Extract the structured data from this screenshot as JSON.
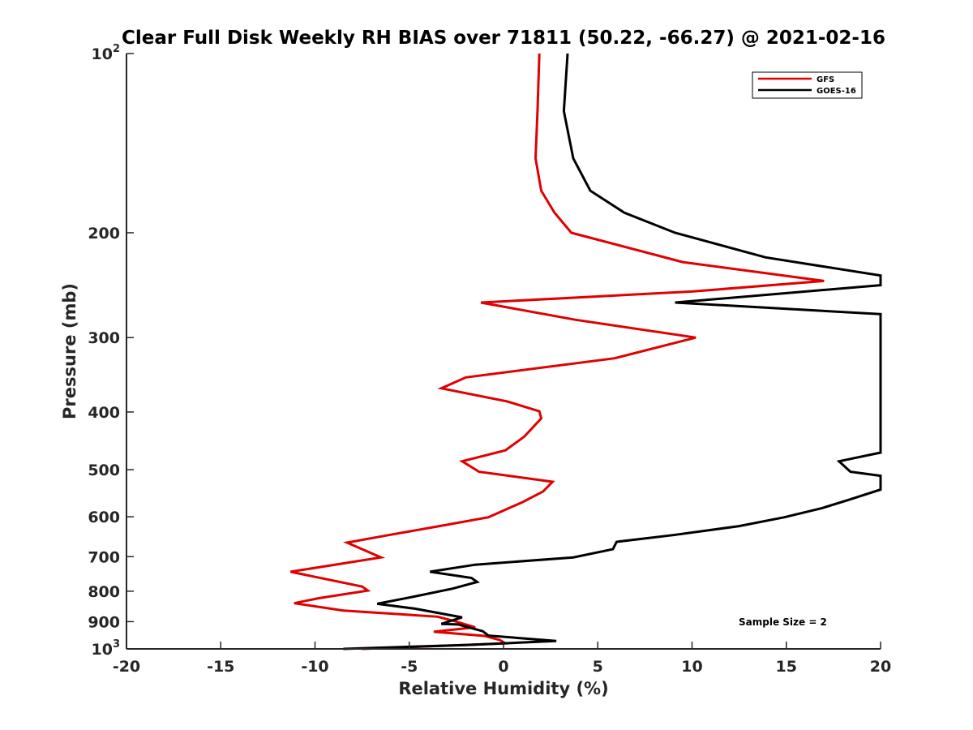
{
  "chart_data": {
    "type": "line",
    "title": "Clear Full Disk Weekly RH BIAS over 71811 (50.22, -66.27) @ 2021-02-16",
    "xlabel": "Relative Humidity (%)",
    "ylabel": "Pressure (mb)",
    "xlim": [
      -20,
      20
    ],
    "ylim": [
      100,
      1000
    ],
    "yscale": "log",
    "yreversed": true,
    "grid": false,
    "legend_position": "top-right",
    "annotation": "Sample Size = 2",
    "x_ticks": [
      {
        "value": -20,
        "label": "-20"
      },
      {
        "value": -15,
        "label": "-15"
      },
      {
        "value": -10,
        "label": "-10"
      },
      {
        "value": -5,
        "label": "-5"
      },
      {
        "value": 0,
        "label": "0"
      },
      {
        "value": 5,
        "label": "5"
      },
      {
        "value": 10,
        "label": "10"
      },
      {
        "value": 15,
        "label": "15"
      },
      {
        "value": 20,
        "label": "20"
      }
    ],
    "y_ticks": [
      {
        "value": 100,
        "base": "10",
        "exp": "2"
      },
      {
        "value": 200,
        "base": "200",
        "exp": ""
      },
      {
        "value": 300,
        "base": "300",
        "exp": ""
      },
      {
        "value": 400,
        "base": "400",
        "exp": ""
      },
      {
        "value": 500,
        "base": "500",
        "exp": ""
      },
      {
        "value": 600,
        "base": "600",
        "exp": ""
      },
      {
        "value": 700,
        "base": "700",
        "exp": ""
      },
      {
        "value": 800,
        "base": "800",
        "exp": ""
      },
      {
        "value": 900,
        "base": "900",
        "exp": ""
      },
      {
        "value": 1000,
        "base": "10",
        "exp": "3"
      }
    ],
    "series": [
      {
        "name": "GFS",
        "color": "#e00000",
        "points": [
          [
            1.9,
            100
          ],
          [
            1.8,
            125
          ],
          [
            1.7,
            150
          ],
          [
            2.0,
            170
          ],
          [
            2.7,
            185
          ],
          [
            3.6,
            200
          ],
          [
            9.5,
            224
          ],
          [
            17.0,
            241
          ],
          [
            10.0,
            251
          ],
          [
            -1.2,
            262
          ],
          [
            3.8,
            280
          ],
          [
            10.2,
            300
          ],
          [
            5.9,
            325
          ],
          [
            -2.0,
            350
          ],
          [
            -3.3,
            365
          ],
          [
            0.2,
            384
          ],
          [
            1.9,
            399
          ],
          [
            2.0,
            410
          ],
          [
            1.1,
            440
          ],
          [
            0.1,
            464
          ],
          [
            -2.2,
            484
          ],
          [
            -1.3,
            504
          ],
          [
            2.6,
            524
          ],
          [
            2.1,
            544
          ],
          [
            1.0,
            567
          ],
          [
            -0.8,
            601
          ],
          [
            -3.4,
            622
          ],
          [
            -6.1,
            644
          ],
          [
            -8.3,
            663
          ],
          [
            -6.5,
            702
          ],
          [
            -11.3,
            742
          ],
          [
            -7.5,
            786
          ],
          [
            -7.2,
            798
          ],
          [
            -9.8,
            822
          ],
          [
            -11.1,
            838
          ],
          [
            -8.5,
            862
          ],
          [
            -3.5,
            883
          ],
          [
            -2.5,
            900
          ],
          [
            -1.5,
            920
          ],
          [
            -3.7,
            936
          ],
          [
            -1.0,
            951
          ],
          [
            -0.2,
            966
          ],
          [
            0.1,
            979
          ],
          [
            -7.5,
            1000
          ]
        ]
      },
      {
        "name": "GOES-16",
        "color": "#000000",
        "points": [
          [
            3.4,
            100
          ],
          [
            3.2,
            125
          ],
          [
            3.7,
            150
          ],
          [
            4.6,
            170
          ],
          [
            6.4,
            185
          ],
          [
            9.1,
            200
          ],
          [
            13.9,
            220
          ],
          [
            20.0,
            236
          ],
          [
            20.0,
            240
          ],
          [
            20.0,
            245
          ],
          [
            9.1,
            262
          ],
          [
            20.0,
            274
          ],
          [
            20.0,
            468
          ],
          [
            17.8,
            484
          ],
          [
            18.4,
            504
          ],
          [
            20.0,
            512
          ],
          [
            20.0,
            540
          ],
          [
            18.3,
            562
          ],
          [
            16.9,
            580
          ],
          [
            14.9,
            601
          ],
          [
            12.5,
            622
          ],
          [
            9.0,
            644
          ],
          [
            6.0,
            661
          ],
          [
            5.8,
            680
          ],
          [
            3.7,
            702
          ],
          [
            -1.5,
            722
          ],
          [
            -3.9,
            742
          ],
          [
            -1.7,
            760
          ],
          [
            -1.4,
            772
          ],
          [
            -2.7,
            792
          ],
          [
            -5.0,
            820
          ],
          [
            -6.7,
            840
          ],
          [
            -4.7,
            856
          ],
          [
            -2.2,
            885
          ],
          [
            -3.3,
            908
          ],
          [
            -2.4,
            910
          ],
          [
            -1.1,
            934
          ],
          [
            -0.8,
            950
          ],
          [
            2.8,
            970
          ],
          [
            -2.0,
            985
          ],
          [
            -8.5,
            1000
          ]
        ]
      }
    ]
  }
}
